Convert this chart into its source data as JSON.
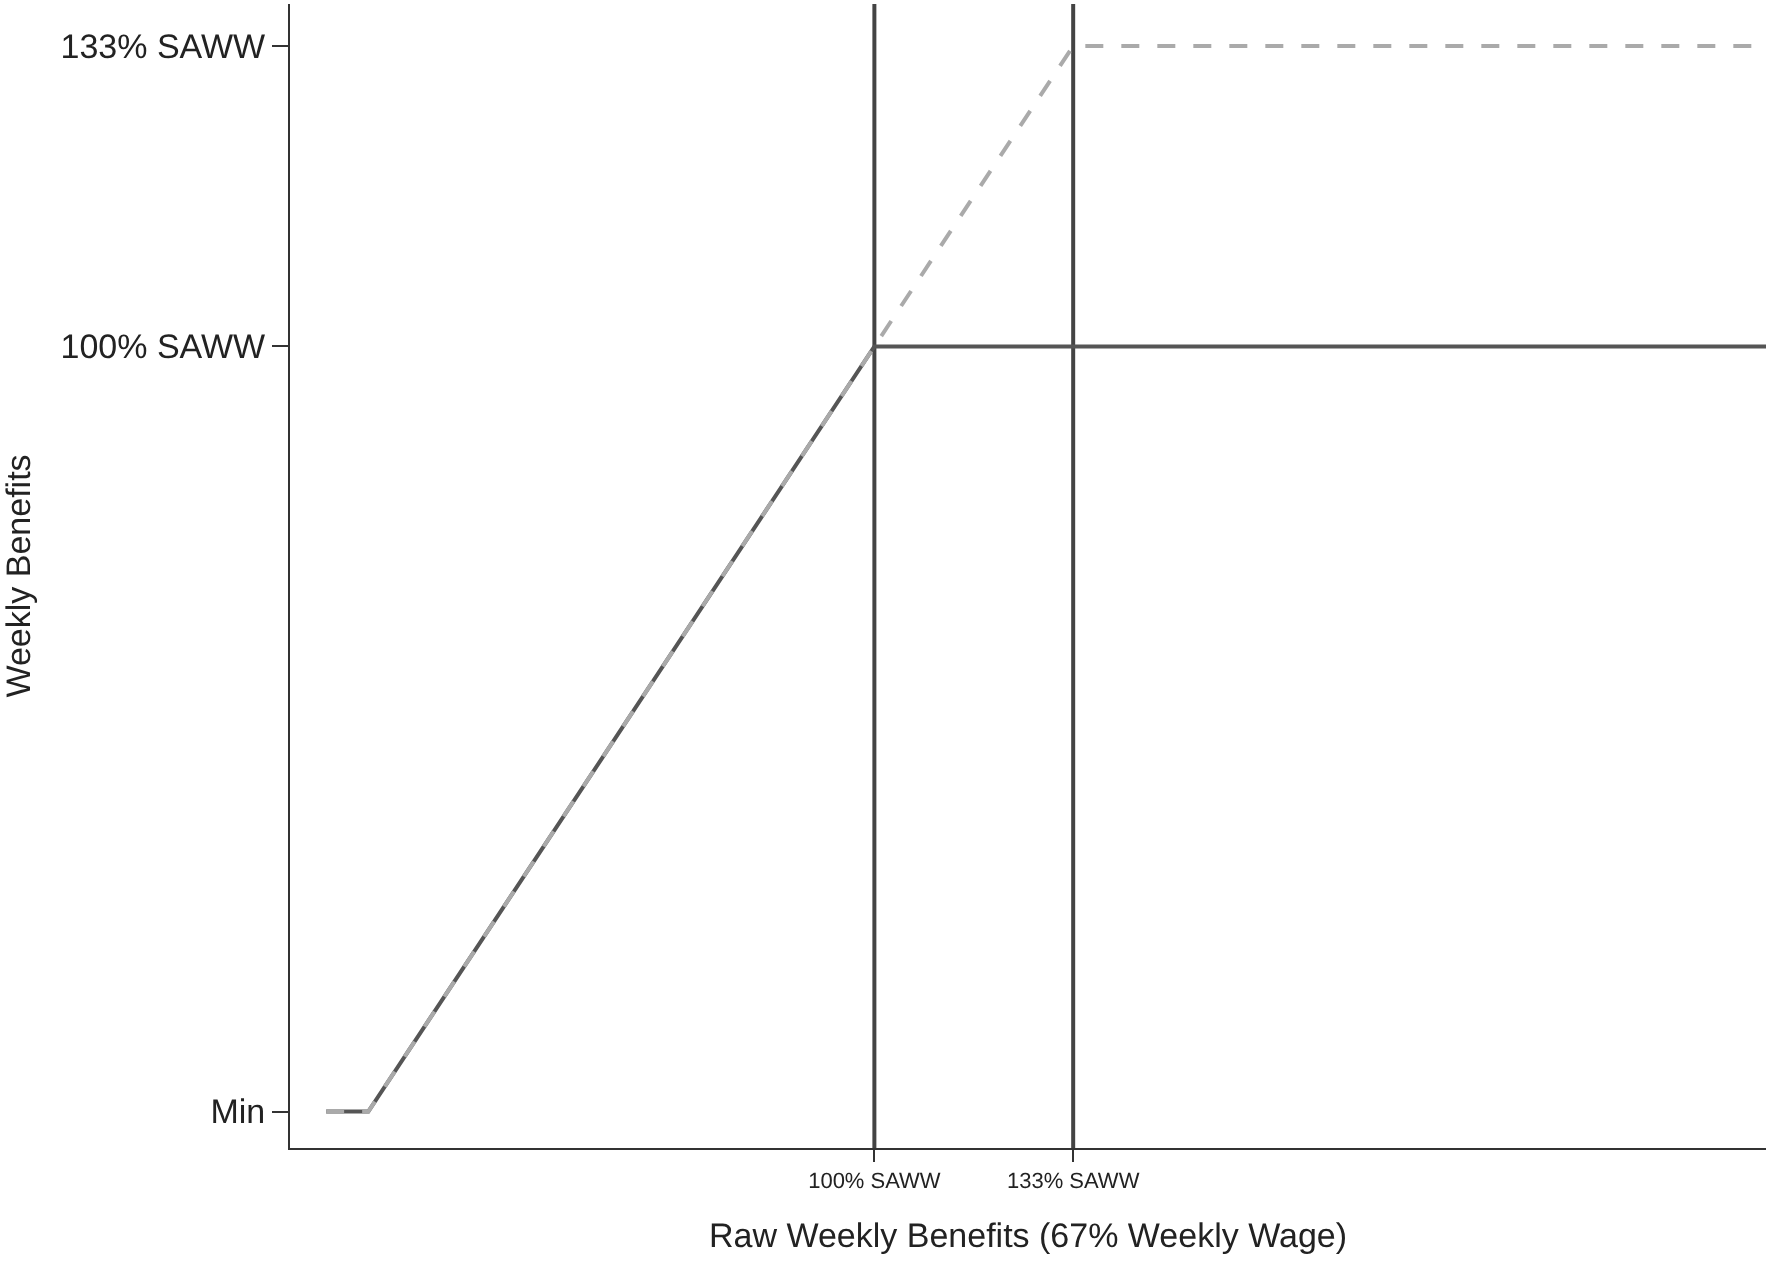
{
  "chart_data": {
    "type": "line",
    "xlabel": "Raw Weekly Benefits (67% Weekly Wage)",
    "ylabel": "Weekly Benefits",
    "series": [
      {
        "color": "#555555",
        "line_style": "solid",
        "x": [
          9,
          16,
          100,
          248
        ],
        "values": [
          16,
          16,
          100,
          100
        ]
      },
      {
        "color": "#aaaaaa",
        "line_style": "dashed",
        "x": [
          9,
          16,
          133,
          248
        ],
        "values": [
          16,
          16,
          133,
          133
        ]
      }
    ],
    "xlim": [
      3,
      248
    ],
    "ylim": [
      12,
      137.6
    ],
    "xticks": [
      {
        "value": 100,
        "label": "100% SAWW"
      },
      {
        "value": 133,
        "label": "133% SAWW"
      }
    ],
    "yticks": [
      {
        "value": 16,
        "label": "Min"
      },
      {
        "value": 100,
        "label": "100% SAWW"
      },
      {
        "value": 133,
        "label": "133% SAWW"
      }
    ],
    "ref_lines": [
      {
        "axis": "x",
        "value": 100,
        "color": "#444444"
      },
      {
        "axis": "x",
        "value": 133,
        "color": "#444444"
      }
    ],
    "grid": false
  }
}
